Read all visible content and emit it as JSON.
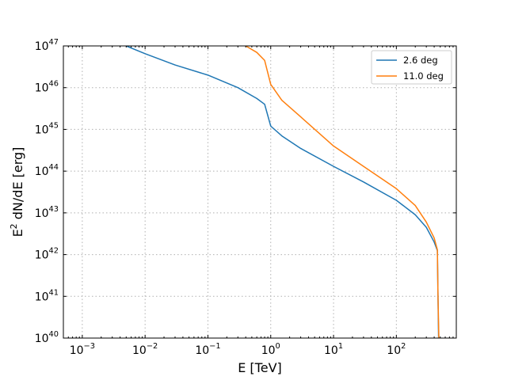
{
  "chart_data": {
    "type": "line",
    "xlabel": "E [TeV]",
    "ylabel_base": "E",
    "ylabel_sup": "2",
    "ylabel_rest": " dN/dE [erg]",
    "xscale": "log",
    "yscale": "log",
    "xlim": [
      0.0005,
      900
    ],
    "ylim": [
      1e+40,
      1e+47
    ],
    "grid": true,
    "legend_position": "top-right",
    "x_ticks": [
      {
        "value": 0.001,
        "base": "10",
        "exp": "−3"
      },
      {
        "value": 0.01,
        "base": "10",
        "exp": "−2"
      },
      {
        "value": 0.1,
        "base": "10",
        "exp": "−1"
      },
      {
        "value": 1,
        "base": "10",
        "exp": "0"
      },
      {
        "value": 10,
        "base": "10",
        "exp": "1"
      },
      {
        "value": 100,
        "base": "10",
        "exp": "2"
      }
    ],
    "y_ticks": [
      {
        "value": 1e+40,
        "base": "10",
        "exp": "40"
      },
      {
        "value": 1e+41,
        "base": "10",
        "exp": "41"
      },
      {
        "value": 1e+42,
        "base": "10",
        "exp": "42"
      },
      {
        "value": 1e+43,
        "base": "10",
        "exp": "43"
      },
      {
        "value": 1e+44,
        "base": "10",
        "exp": "44"
      },
      {
        "value": 1e+45,
        "base": "10",
        "exp": "45"
      },
      {
        "value": 1e+46,
        "base": "10",
        "exp": "46"
      },
      {
        "value": 1e+47,
        "base": "10",
        "exp": "47"
      }
    ],
    "series": [
      {
        "name": "2.6 deg",
        "color": "#1f77b4",
        "points": [
          [
            0.005,
            1e+47
          ],
          [
            0.01,
            6.5e+46
          ],
          [
            0.03,
            3.5e+46
          ],
          [
            0.1,
            2e+46
          ],
          [
            0.3,
            1e+46
          ],
          [
            0.6,
            5.5e+45
          ],
          [
            0.8,
            4e+45
          ],
          [
            1.0,
            1.2e+45
          ],
          [
            1.5,
            7e+44
          ],
          [
            3,
            3.5e+44
          ],
          [
            10,
            1.3e+44
          ],
          [
            30,
            5.5e+43
          ],
          [
            100,
            2e+43
          ],
          [
            200,
            9e+42
          ],
          [
            300,
            4.5e+42
          ],
          [
            400,
            2e+42
          ],
          [
            450,
            1.25e+42
          ],
          [
            460,
            1e+41
          ],
          [
            470,
            1e+40
          ]
        ]
      },
      {
        "name": "11.0 deg",
        "color": "#ff7f0e",
        "points": [
          [
            0.4,
            1e+47
          ],
          [
            0.6,
            7e+46
          ],
          [
            0.8,
            4.5e+46
          ],
          [
            1.0,
            1.2e+46
          ],
          [
            1.5,
            5e+45
          ],
          [
            3,
            2e+45
          ],
          [
            10,
            4e+44
          ],
          [
            30,
            1.3e+44
          ],
          [
            100,
            3.8e+43
          ],
          [
            200,
            1.5e+43
          ],
          [
            300,
            6e+42
          ],
          [
            400,
            2.5e+42
          ],
          [
            450,
            1.3e+42
          ],
          [
            460,
            1e+41
          ],
          [
            475,
            1e+40
          ]
        ]
      }
    ]
  }
}
